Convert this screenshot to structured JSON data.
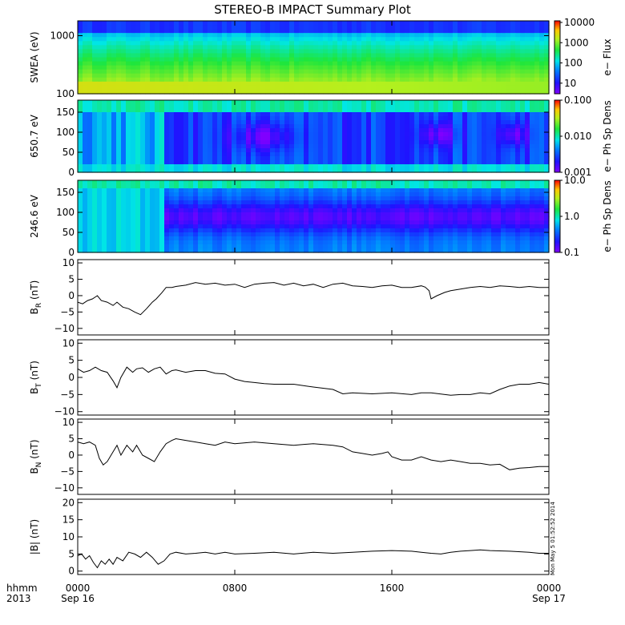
{
  "chart_data": {
    "title": "STEREO-B IMPACT Summary Plot",
    "x_axis": {
      "ticks": [
        {
          "label1": "0000",
          "label2": "Sep 16",
          "hours": 0
        },
        {
          "label1": "0800",
          "label2": "",
          "hours": 8
        },
        {
          "label1": "1600",
          "label2": "",
          "hours": 16
        },
        {
          "label1": "0000",
          "label2": "Sep 17",
          "hours": 24
        }
      ],
      "left_labels": [
        "hhmm",
        "2013"
      ],
      "range_hours": [
        0,
        24
      ]
    },
    "timestamp": "Mon May 5 01:52:52 2014",
    "panels": [
      {
        "type": "heatmap",
        "ylabel": "SWEA (eV)",
        "yscale": "log",
        "ylim": [
          100,
          1800
        ],
        "yticks": [
          {
            "label": "100",
            "value": 100
          },
          {
            "label": "1000",
            "value": 1000
          }
        ],
        "colorbar": {
          "label": "e− Flux",
          "scale": "log",
          "range": [
            3,
            12000
          ],
          "ticks": [
            {
              "label": "10000",
              "value": 10000
            },
            {
              "label": "1000",
              "value": 1000
            },
            {
              "label": "100",
              "value": 100
            },
            {
              "label": "10",
              "value": 10
            }
          ]
        }
      },
      {
        "type": "heatmap",
        "ylabel": "650.7 eV",
        "yscale": "linear",
        "ylim": [
          0,
          180
        ],
        "yticks": [
          {
            "label": "0",
            "value": 0
          },
          {
            "label": "50",
            "value": 50
          },
          {
            "label": "100",
            "value": 100
          },
          {
            "label": "150",
            "value": 150
          }
        ],
        "colorbar": {
          "label": "e− Ph Sp Dens",
          "scale": "log",
          "range": [
            0.001,
            0.1
          ],
          "ticks": [
            {
              "label": "0.100",
              "value": 0.1
            },
            {
              "label": "0.010",
              "value": 0.01
            },
            {
              "label": "0.001",
              "value": 0.001
            }
          ]
        }
      },
      {
        "type": "heatmap",
        "ylabel": "246.6 eV",
        "yscale": "linear",
        "ylim": [
          0,
          180
        ],
        "yticks": [
          {
            "label": "0",
            "value": 0
          },
          {
            "label": "50",
            "value": 50
          },
          {
            "label": "100",
            "value": 100
          },
          {
            "label": "150",
            "value": 150
          }
        ],
        "colorbar": {
          "label": "e− Ph Sp Dens",
          "scale": "log",
          "range": [
            0.1,
            10
          ],
          "ticks": [
            {
              "label": "10.0",
              "value": 10
            },
            {
              "label": "1.0",
              "value": 1
            },
            {
              "label": "0.1",
              "value": 0.1
            }
          ]
        }
      },
      {
        "type": "line",
        "ylabel": "B",
        "ylabel_sub": "R",
        "ylabel_unit": "(nT)",
        "ylim": [
          -12,
          11
        ],
        "yticks": [
          {
            "label": "10",
            "value": 10
          },
          {
            "label": "5",
            "value": 5
          },
          {
            "label": "0",
            "value": 0
          },
          {
            "label": "−5",
            "value": -5
          },
          {
            "label": "−10",
            "value": -10
          }
        ],
        "x": [
          0,
          0.25,
          0.5,
          0.75,
          1,
          1.2,
          1.5,
          1.8,
          2,
          2.3,
          2.6,
          2.9,
          3.2,
          3.5,
          3.8,
          4,
          4.3,
          4.5,
          4.8,
          5,
          5.5,
          6,
          6.5,
          7,
          7.5,
          8,
          8.5,
          9,
          9.5,
          10,
          10.5,
          11,
          11.5,
          12,
          12.5,
          13,
          13.5,
          14,
          14.5,
          15,
          15.5,
          16,
          16.5,
          17,
          17.5,
          17.7,
          17.9,
          18,
          18.3,
          18.7,
          19,
          19.5,
          20,
          20.5,
          21,
          21.5,
          22,
          22.5,
          23,
          23.5,
          24
        ],
        "y": [
          -2,
          -2.5,
          -1.5,
          -1,
          0,
          -1.5,
          -2,
          -3,
          -2,
          -3.5,
          -4,
          -5,
          -5.8,
          -4,
          -2,
          -1,
          1,
          2.5,
          2.5,
          2.8,
          3.2,
          4,
          3.5,
          3.8,
          3.2,
          3.5,
          2.5,
          3.5,
          3.8,
          4,
          3.2,
          3.8,
          3,
          3.5,
          2.5,
          3.5,
          3.8,
          3,
          2.8,
          2.5,
          3,
          3.2,
          2.5,
          2.5,
          3,
          2.6,
          1.5,
          -1,
          0,
          1,
          1.5,
          2,
          2.5,
          2.8,
          2.5,
          3,
          2.8,
          2.5,
          2.8,
          2.5,
          2.5
        ]
      },
      {
        "type": "line",
        "ylabel": "B",
        "ylabel_sub": "T",
        "ylabel_unit": "(nT)",
        "ylim": [
          -11,
          11
        ],
        "yticks": [
          {
            "label": "10",
            "value": 10
          },
          {
            "label": "5",
            "value": 5
          },
          {
            "label": "0",
            "value": 0
          },
          {
            "label": "−5",
            "value": -5
          },
          {
            "label": "−10",
            "value": -10
          }
        ],
        "x": [
          0,
          0.3,
          0.6,
          0.9,
          1.2,
          1.5,
          1.8,
          2,
          2.2,
          2.5,
          2.8,
          3,
          3.3,
          3.6,
          3.9,
          4.2,
          4.5,
          4.8,
          5,
          5.5,
          6,
          6.5,
          7,
          7.5,
          8,
          8.5,
          9,
          9.5,
          10,
          11,
          12,
          13,
          13.5,
          14,
          15,
          16,
          17,
          17.5,
          18,
          19,
          19.5,
          20,
          20.5,
          21,
          21.5,
          22,
          22.5,
          23,
          23.5,
          24
        ],
        "y": [
          2.5,
          1.5,
          2,
          3,
          2,
          1.5,
          -1,
          -3,
          0,
          3,
          1.5,
          2.5,
          2.8,
          1.5,
          2.5,
          3,
          1,
          2,
          2.2,
          1.5,
          2,
          2,
          1.2,
          1,
          -0.5,
          -1.2,
          -1.5,
          -1.8,
          -2,
          -2,
          -2.8,
          -3.5,
          -4.8,
          -4.5,
          -4.8,
          -4.5,
          -5,
          -4.5,
          -4.5,
          -5.2,
          -5,
          -5,
          -4.5,
          -4.8,
          -3.5,
          -2.5,
          -2,
          -2,
          -1.5,
          -2
        ]
      },
      {
        "type": "line",
        "ylabel": "B",
        "ylabel_sub": "N",
        "ylabel_unit": "(nT)",
        "ylim": [
          -12,
          11
        ],
        "yticks": [
          {
            "label": "10",
            "value": 10
          },
          {
            "label": "5",
            "value": 5
          },
          {
            "label": "0",
            "value": 0
          },
          {
            "label": "−5",
            "value": -5
          },
          {
            "label": "−10",
            "value": -10
          }
        ],
        "x": [
          0,
          0.3,
          0.6,
          0.9,
          1.1,
          1.3,
          1.5,
          1.8,
          2,
          2.2,
          2.5,
          2.8,
          3,
          3.3,
          3.6,
          3.9,
          4.2,
          4.5,
          4.8,
          5,
          5.5,
          6,
          6.5,
          7,
          7.5,
          8,
          9,
          10,
          11,
          12,
          13,
          13.5,
          14,
          14.5,
          15,
          15.5,
          15.8,
          16,
          16.5,
          17,
          17.5,
          18,
          18.5,
          19,
          19.5,
          20,
          20.5,
          21,
          21.5,
          22,
          22.5,
          23,
          23.5,
          24
        ],
        "y": [
          4,
          3.5,
          4,
          3,
          -1,
          -3,
          -2,
          1,
          3,
          0,
          3,
          1,
          3,
          0,
          -1,
          -2,
          1,
          3.5,
          4.5,
          5,
          4.5,
          4,
          3.5,
          3,
          4,
          3.5,
          4,
          3.5,
          3,
          3.5,
          3,
          2.5,
          1,
          0.5,
          0,
          0.5,
          1,
          -0.5,
          -1.5,
          -1.5,
          -0.5,
          -1.5,
          -2,
          -1.5,
          -2,
          -2.5,
          -2.5,
          -3,
          -2.8,
          -4.5,
          -4,
          -3.8,
          -3.5,
          -3.5
        ]
      },
      {
        "type": "line",
        "ylabel": "|B|",
        "ylabel_sub": "",
        "ylabel_unit": "(nT)",
        "ylim": [
          -1,
          21
        ],
        "yticks": [
          {
            "label": "20",
            "value": 20
          },
          {
            "label": "15",
            "value": 15
          },
          {
            "label": "10",
            "value": 10
          },
          {
            "label": "5",
            "value": 5
          },
          {
            "label": "0",
            "value": 0
          }
        ],
        "x": [
          0,
          0.2,
          0.4,
          0.6,
          0.8,
          1,
          1.2,
          1.4,
          1.6,
          1.8,
          2,
          2.3,
          2.6,
          2.9,
          3.2,
          3.5,
          3.8,
          4.1,
          4.4,
          4.7,
          5,
          5.5,
          6,
          6.5,
          7,
          7.5,
          8,
          9,
          10,
          11,
          12,
          13,
          14,
          15,
          16,
          17,
          17.5,
          18,
          18.5,
          19,
          19.5,
          20,
          20.5,
          21,
          22,
          23,
          23.5,
          24
        ],
        "y": [
          4.5,
          5,
          3.5,
          4.5,
          2.5,
          1,
          3,
          2,
          3.5,
          2,
          4,
          3,
          5.5,
          5,
          4,
          5.5,
          4,
          2,
          3,
          5,
          5.5,
          5,
          5.2,
          5.5,
          5,
          5.5,
          5,
          5.2,
          5.5,
          5,
          5.5,
          5.2,
          5.5,
          5.8,
          6,
          5.8,
          5.5,
          5.2,
          5,
          5.5,
          5.8,
          6,
          6.2,
          6,
          5.8,
          5.5,
          5.2,
          5.2
        ]
      }
    ]
  }
}
